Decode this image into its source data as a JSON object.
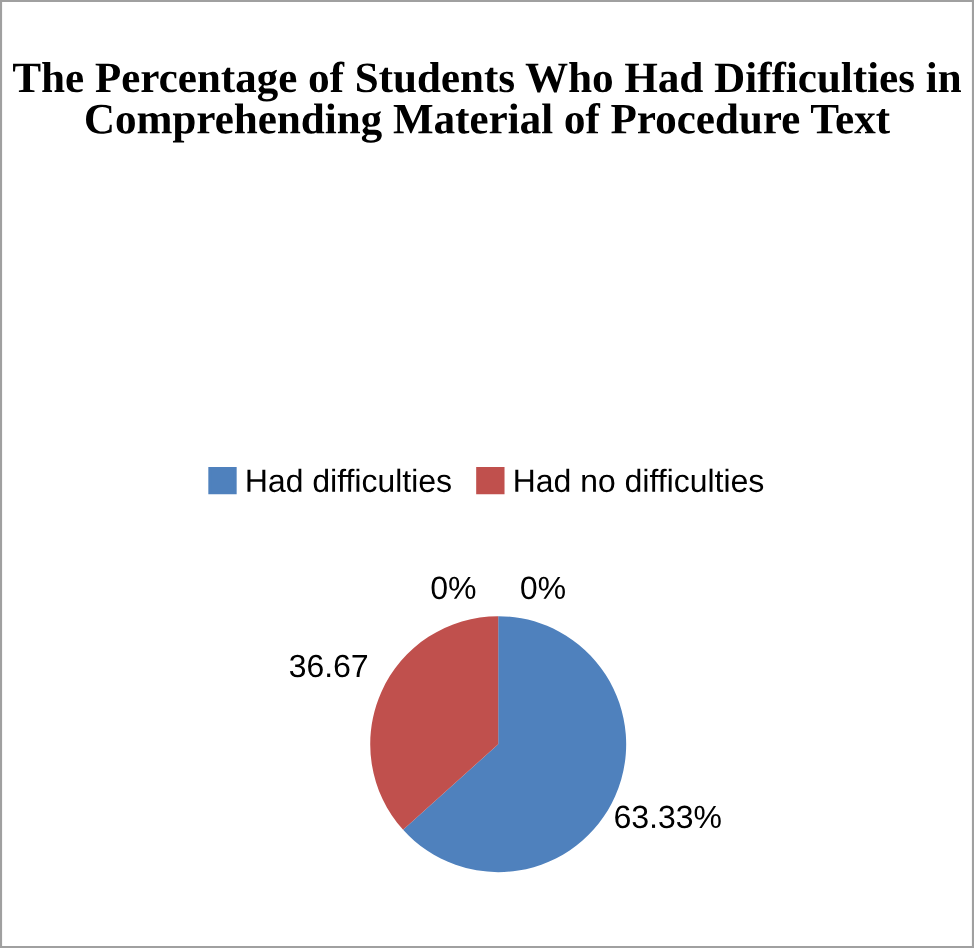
{
  "chart_data": {
    "type": "pie",
    "title": "The Percentage of Students Who Had Difficulties in Comprehending Material of Procedure Text",
    "categories": [
      "Had difficulties",
      "Had no difficulties",
      null,
      null
    ],
    "values": [
      63.33,
      36.67,
      0,
      0
    ],
    "colors": [
      "#4f81bd",
      "#c0504d",
      "#9bbb59",
      "#8064a2"
    ],
    "value_labels": [
      "63.33%",
      "36.67",
      "0%",
      "0%"
    ],
    "legend": "top"
  }
}
